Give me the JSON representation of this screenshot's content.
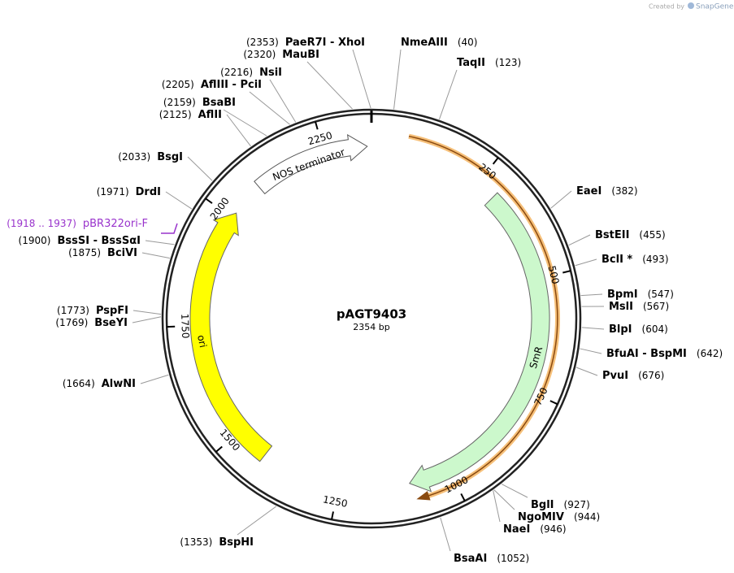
{
  "header": {
    "credit": "Created by",
    "brand": "SnapGene"
  },
  "map": {
    "name": "pAGT9403",
    "length": "2354 bp",
    "ticks": [
      "250",
      "500",
      "750",
      "1000",
      "1250",
      "1500",
      "1750",
      "2000",
      "2250"
    ],
    "features": [
      {
        "label": "NOS terminator"
      },
      {
        "label": "SmR"
      },
      {
        "label": "ori"
      }
    ],
    "primer": {
      "range": "(1918 .. 1937)",
      "name": "pBR322ori-F"
    },
    "sites": [
      {
        "name": "NmeAIII",
        "position": "(40)"
      },
      {
        "name": "TaqII",
        "position": "(123)"
      },
      {
        "name": "EaeI",
        "position": "(382)"
      },
      {
        "name": "BstEII",
        "position": "(455)"
      },
      {
        "name": "BclI *",
        "position": "(493)"
      },
      {
        "name": "BpmI",
        "position": "(547)"
      },
      {
        "name": "MslI",
        "position": "(567)"
      },
      {
        "name": "BlpI",
        "position": "(604)"
      },
      {
        "name": "BfuAI  - BspMI",
        "position": "(642)"
      },
      {
        "name": "PvuI",
        "position": "(676)"
      },
      {
        "name": "BglI",
        "position": "(927)"
      },
      {
        "name": "NgoMIV",
        "position": "(944)"
      },
      {
        "name": "NaeI",
        "position": "(946)"
      },
      {
        "name": "BsaAI",
        "position": "(1052)"
      },
      {
        "name": "BspHI",
        "position": "(1353)"
      },
      {
        "name": "AlwNI",
        "position": "(1664)"
      },
      {
        "name": "BseYI",
        "position": "(1769)"
      },
      {
        "name": "PspFI",
        "position": "(1773)"
      },
      {
        "name": "BciVI",
        "position": "(1875)"
      },
      {
        "name": "BssSI  - BssSαI",
        "position": "(1900)"
      },
      {
        "name": "DrdI",
        "position": "(1971)"
      },
      {
        "name": "BsgI",
        "position": "(2033)"
      },
      {
        "name": "AflII",
        "position": "(2125)"
      },
      {
        "name": "BsaBI",
        "position": "(2159)"
      },
      {
        "name": "AflIII  - PciI",
        "position": "(2205)"
      },
      {
        "name": "NsiI",
        "position": "(2216)"
      },
      {
        "name": "MauBI",
        "position": "(2320)"
      },
      {
        "name": "PaeR7I  - XhoI",
        "position": "(2353)"
      }
    ]
  }
}
